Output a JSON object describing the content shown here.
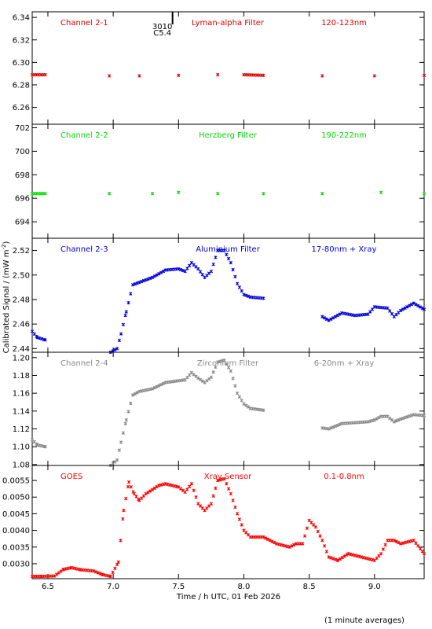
{
  "chart_data": {
    "type": "scatter",
    "x_label": "Time / h UTC, 01 Feb 2026",
    "y_label": "Calibrated Signal / (mW m",
    "y_label_sup": "-2",
    "y_label_end": ")",
    "footnote": "(1 minute averages)",
    "xlim": [
      6.38,
      9.38
    ],
    "x_ticks": [
      6.5,
      7.0,
      7.5,
      8.0,
      8.5,
      9.0
    ],
    "x_tick_labels": [
      "6.5",
      "7.0",
      "7.5",
      "8.0",
      "8.5",
      "9.0"
    ],
    "event_marker": {
      "x": 7.37,
      "label_1": "3010",
      "label_2": "C5.4"
    },
    "panels": [
      {
        "name": "Channel 2-1",
        "filter": "Lyman-alpha Filter",
        "band": "120-123nm",
        "color": "#e00000",
        "ylim": [
          6.245,
          6.345
        ],
        "y_format": 2,
        "y_ticks": [
          6.26,
          6.28,
          6.3,
          6.32,
          6.34
        ],
        "points": [
          [
            6.38,
            6.289
          ],
          [
            6.48,
            6.289
          ],
          [
            6.97,
            6.288
          ],
          [
            7.2,
            6.288
          ],
          [
            7.5,
            6.2885
          ],
          [
            7.8,
            6.289
          ],
          [
            8.0,
            6.289
          ],
          [
            8.15,
            6.2885
          ],
          [
            8.6,
            6.288
          ],
          [
            9.0,
            6.288
          ],
          [
            9.38,
            6.2885
          ]
        ]
      },
      {
        "name": "Channel 2-2",
        "filter": "Herzberg Filter",
        "band": "190-222nm",
        "color": "#00dd00",
        "ylim": [
          692.6,
          702.3
        ],
        "y_format": 0,
        "y_ticks": [
          694,
          696,
          698,
          700,
          702
        ],
        "points": [
          [
            6.38,
            696.4
          ],
          [
            6.48,
            696.4
          ],
          [
            6.97,
            696.4
          ],
          [
            7.3,
            696.4
          ],
          [
            7.5,
            696.5
          ],
          [
            7.8,
            696.4
          ],
          [
            8.15,
            696.4
          ],
          [
            8.6,
            696.4
          ],
          [
            9.05,
            696.5
          ],
          [
            9.38,
            696.4
          ]
        ]
      },
      {
        "name": "Channel 2-3",
        "filter": "Aluminium Filter",
        "band": "17-80nm + Xray",
        "color": "#0000dd",
        "ylim": [
          2.437,
          2.53
        ],
        "y_format": 2,
        "y_ticks": [
          2.44,
          2.46,
          2.48,
          2.5,
          2.52
        ],
        "points": [
          [
            6.38,
            2.454
          ],
          [
            6.42,
            2.449
          ],
          [
            6.48,
            2.447
          ],
          [
            6.98,
            2.437
          ],
          [
            7.03,
            2.44
          ],
          [
            7.06,
            2.452
          ],
          [
            7.1,
            2.47
          ],
          [
            7.15,
            2.492
          ],
          [
            7.2,
            2.494
          ],
          [
            7.3,
            2.498
          ],
          [
            7.4,
            2.504
          ],
          [
            7.5,
            2.505
          ],
          [
            7.55,
            2.503
          ],
          [
            7.6,
            2.51
          ],
          [
            7.65,
            2.505
          ],
          [
            7.7,
            2.498
          ],
          [
            7.75,
            2.503
          ],
          [
            7.8,
            2.52
          ],
          [
            7.85,
            2.52
          ],
          [
            7.9,
            2.51
          ],
          [
            7.95,
            2.493
          ],
          [
            8.0,
            2.484
          ],
          [
            8.05,
            2.482
          ],
          [
            8.15,
            2.481
          ],
          [
            8.6,
            2.466
          ],
          [
            8.65,
            2.463
          ],
          [
            8.75,
            2.469
          ],
          [
            8.85,
            2.467
          ],
          [
            8.95,
            2.468
          ],
          [
            9.0,
            2.474
          ],
          [
            9.1,
            2.473
          ],
          [
            9.15,
            2.466
          ],
          [
            9.2,
            2.471
          ],
          [
            9.3,
            2.477
          ],
          [
            9.38,
            2.472
          ]
        ]
      },
      {
        "name": "Channel 2-4",
        "filter": "Zirconium Filter",
        "band": "6-20nm + Xray",
        "color": "#888888",
        "ylim": [
          1.079,
          1.206
        ],
        "y_format": 2,
        "y_ticks": [
          1.08,
          1.1,
          1.12,
          1.14,
          1.16,
          1.18,
          1.2
        ],
        "points": [
          [
            6.38,
            1.108
          ],
          [
            6.42,
            1.102
          ],
          [
            6.48,
            1.1
          ],
          [
            6.98,
            1.079
          ],
          [
            7.03,
            1.085
          ],
          [
            7.06,
            1.105
          ],
          [
            7.1,
            1.13
          ],
          [
            7.15,
            1.158
          ],
          [
            7.2,
            1.162
          ],
          [
            7.3,
            1.165
          ],
          [
            7.4,
            1.172
          ],
          [
            7.5,
            1.174
          ],
          [
            7.55,
            1.175
          ],
          [
            7.6,
            1.183
          ],
          [
            7.65,
            1.177
          ],
          [
            7.7,
            1.172
          ],
          [
            7.75,
            1.178
          ],
          [
            7.8,
            1.195
          ],
          [
            7.85,
            1.197
          ],
          [
            7.9,
            1.185
          ],
          [
            7.95,
            1.16
          ],
          [
            8.0,
            1.148
          ],
          [
            8.05,
            1.143
          ],
          [
            8.15,
            1.141
          ],
          [
            8.6,
            1.121
          ],
          [
            8.65,
            1.12
          ],
          [
            8.75,
            1.126
          ],
          [
            8.85,
            1.127
          ],
          [
            8.95,
            1.128
          ],
          [
            9.0,
            1.13
          ],
          [
            9.05,
            1.134
          ],
          [
            9.1,
            1.134
          ],
          [
            9.15,
            1.128
          ],
          [
            9.2,
            1.131
          ],
          [
            9.3,
            1.136
          ],
          [
            9.38,
            1.135
          ]
        ]
      },
      {
        "name": "GOES",
        "filter": "Xray Sensor",
        "band": "0.1-0.8nm",
        "color": "#ff0000",
        "ylim": [
          0.00255,
          0.00595
        ],
        "y_format": 4,
        "y_ticks": [
          0.003,
          0.0035,
          0.004,
          0.0045,
          0.005,
          0.0055
        ],
        "points": [
          [
            6.38,
            0.00262
          ],
          [
            6.45,
            0.00262
          ],
          [
            6.55,
            0.00263
          ],
          [
            6.62,
            0.00283
          ],
          [
            6.68,
            0.00288
          ],
          [
            6.75,
            0.00282
          ],
          [
            6.85,
            0.00278
          ],
          [
            6.92,
            0.00267
          ],
          [
            6.98,
            0.00262
          ],
          [
            7.04,
            0.00305
          ],
          [
            7.08,
            0.0046
          ],
          [
            7.12,
            0.00545
          ],
          [
            7.16,
            0.0051
          ],
          [
            7.2,
            0.0049
          ],
          [
            7.25,
            0.0051
          ],
          [
            7.35,
            0.00535
          ],
          [
            7.4,
            0.0054
          ],
          [
            7.5,
            0.0053
          ],
          [
            7.55,
            0.00515
          ],
          [
            7.6,
            0.0054
          ],
          [
            7.65,
            0.0048
          ],
          [
            7.7,
            0.0046
          ],
          [
            7.75,
            0.0048
          ],
          [
            7.8,
            0.0055
          ],
          [
            7.85,
            0.00555
          ],
          [
            7.9,
            0.0051
          ],
          [
            7.95,
            0.0045
          ],
          [
            8.0,
            0.004
          ],
          [
            8.05,
            0.0038
          ],
          [
            8.1,
            0.0038
          ],
          [
            8.15,
            0.0038
          ],
          [
            8.25,
            0.0036
          ],
          [
            8.35,
            0.0035
          ],
          [
            8.4,
            0.0036
          ],
          [
            8.45,
            0.0036
          ],
          [
            8.5,
            0.0043
          ],
          [
            8.55,
            0.0041
          ],
          [
            8.6,
            0.0037
          ],
          [
            8.65,
            0.0032
          ],
          [
            8.72,
            0.0031
          ],
          [
            8.8,
            0.0033
          ],
          [
            8.9,
            0.0032
          ],
          [
            9.0,
            0.0031
          ],
          [
            9.05,
            0.0033
          ],
          [
            9.1,
            0.0037
          ],
          [
            9.15,
            0.0037
          ],
          [
            9.2,
            0.0036
          ],
          [
            9.3,
            0.0037
          ],
          [
            9.38,
            0.0033
          ]
        ]
      }
    ]
  }
}
